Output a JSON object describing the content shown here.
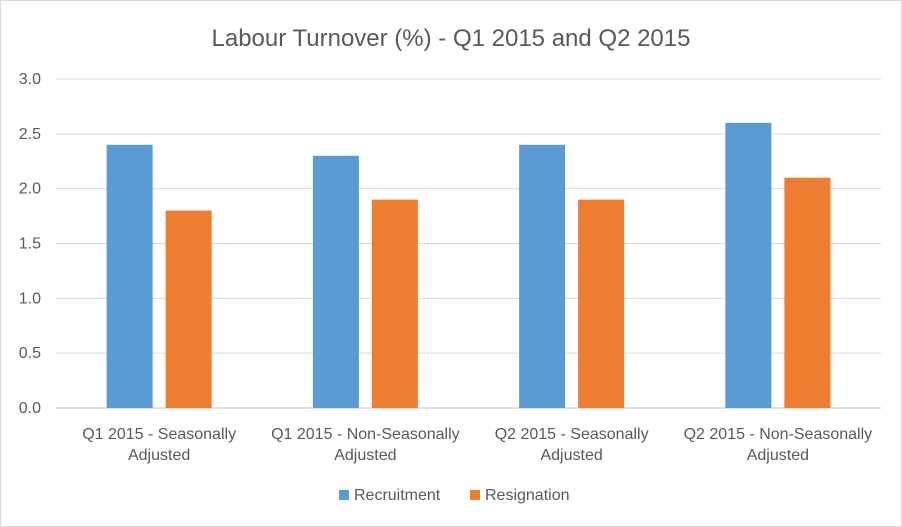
{
  "chart_data": {
    "type": "bar",
    "title": "Labour Turnover (%) - Q1 2015 and Q2 2015",
    "categories": [
      [
        "Q1 2015 - Seasonally",
        "Adjusted"
      ],
      [
        "Q1 2015 - Non-Seasonally",
        "Adjusted"
      ],
      [
        "Q2 2015 - Seasonally",
        "Adjusted"
      ],
      [
        "Q2 2015 - Non-Seasonally",
        "Adjusted"
      ]
    ],
    "series": [
      {
        "name": "Recruitment",
        "color": "#5b9bd5",
        "values": [
          2.4,
          2.3,
          2.4,
          2.6
        ]
      },
      {
        "name": "Resignation",
        "color": "#ed7d31",
        "values": [
          1.8,
          1.9,
          1.9,
          2.1
        ]
      }
    ],
    "ylim": [
      0,
      3.0
    ],
    "yticks": [
      "0.0",
      "0.5",
      "1.0",
      "1.5",
      "2.0",
      "2.5",
      "3.0"
    ],
    "grid": true,
    "legend_position": "bottom"
  }
}
